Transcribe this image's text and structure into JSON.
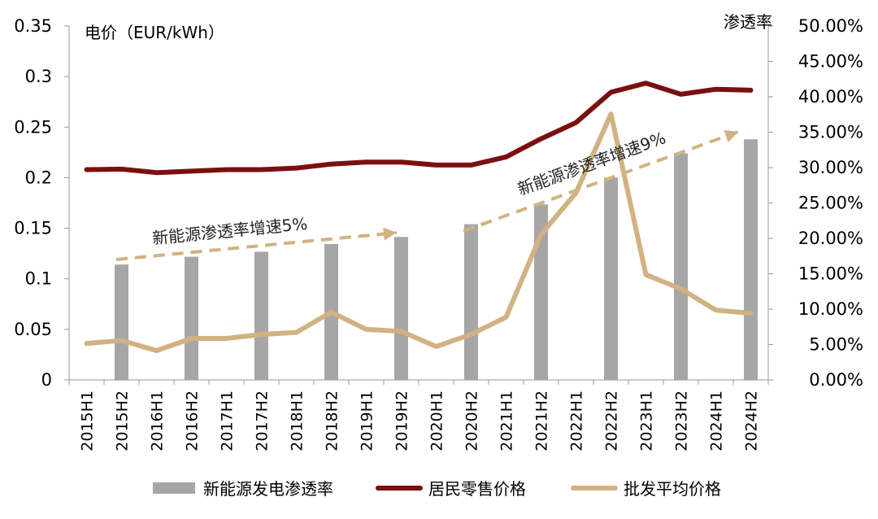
{
  "chart_data": {
    "type": "bar+line",
    "title": "",
    "left_axis": {
      "label": "电价（EUR/kWh）",
      "ylim": [
        0,
        0.35
      ],
      "ticks": [
        "0",
        "0.05",
        "0.1",
        "0.15",
        "0.2",
        "0.25",
        "0.3",
        "0.35"
      ]
    },
    "right_axis": {
      "label": "渗透率",
      "ylim": [
        0,
        0.5
      ],
      "ticks": [
        "0.00%",
        "5.00%",
        "10.00%",
        "15.00%",
        "20.00%",
        "25.00%",
        "30.00%",
        "35.00%",
        "40.00%",
        "45.00%",
        "50.00%"
      ]
    },
    "categories": [
      "2015H1",
      "2015H2",
      "2016H1",
      "2016H2",
      "2017H1",
      "2017H2",
      "2018H1",
      "2018H2",
      "2019H1",
      "2019H2",
      "2020H1",
      "2020H2",
      "2021H1",
      "2021H2",
      "2022H1",
      "2022H2",
      "2023H1",
      "2023H2",
      "2024H1",
      "2024H2"
    ],
    "series": [
      {
        "name": "新能源发电渗透率",
        "kind": "bar",
        "axis": "right",
        "color": "#a6a6a6",
        "values": [
          null,
          0.163,
          null,
          0.174,
          null,
          0.181,
          null,
          0.192,
          null,
          0.202,
          null,
          0.22,
          null,
          0.248,
          null,
          0.286,
          null,
          0.32,
          null,
          0.34
        ]
      },
      {
        "name": "居民零售价格",
        "kind": "line",
        "axis": "left",
        "color": "#7b0f0f",
        "values": [
          0.208,
          0.2085,
          0.205,
          0.2065,
          0.208,
          0.208,
          0.2095,
          0.2135,
          0.2155,
          0.2155,
          0.2125,
          0.2125,
          0.2205,
          0.2385,
          0.2545,
          0.2845,
          0.2935,
          0.2825,
          0.2875,
          0.2865
        ]
      },
      {
        "name": "批发平均价格",
        "kind": "line",
        "axis": "left",
        "color": "#d2b282",
        "values": [
          0.036,
          0.039,
          0.029,
          0.041,
          0.041,
          0.045,
          0.047,
          0.067,
          0.05,
          0.048,
          0.033,
          0.045,
          0.062,
          0.144,
          0.185,
          0.263,
          0.104,
          0.09,
          0.069,
          0.066
        ]
      }
    ],
    "annotations": [
      {
        "text": "新能源渗透率增速5%"
      },
      {
        "text": "新能源渗透率增速9%"
      }
    ],
    "legend_position": "bottom",
    "grid": false
  }
}
